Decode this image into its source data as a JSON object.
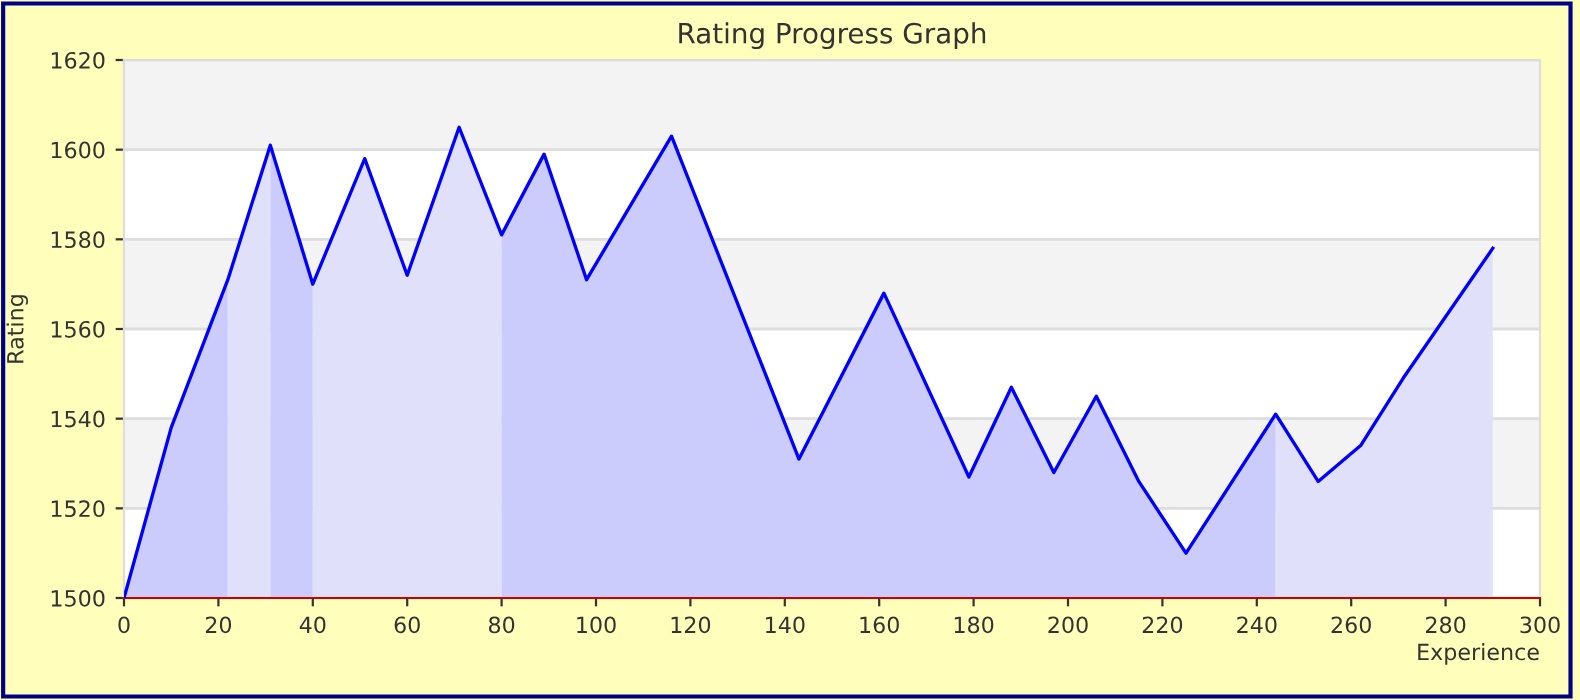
{
  "chart_data": {
    "type": "area",
    "title": "Rating Progress Graph",
    "xlabel": "Experience",
    "ylabel": "Rating",
    "xlim": [
      0,
      300
    ],
    "xticks": [
      0,
      20,
      40,
      60,
      80,
      100,
      120,
      140,
      160,
      180,
      200,
      220,
      240,
      260,
      280,
      300
    ],
    "ylim": [
      1500,
      1620
    ],
    "yticks": [
      1500,
      1520,
      1540,
      1560,
      1580,
      1600,
      1620
    ],
    "grid": "y",
    "series": [
      {
        "type": "area",
        "color": "#ccccfc",
        "x": [
          0,
          10,
          22
        ],
        "values": [
          1500,
          1538,
          1571
        ]
      },
      {
        "type": "area",
        "color": "#e0e0fa",
        "x": [
          22,
          31
        ],
        "values": [
          1571,
          1601
        ]
      },
      {
        "type": "area",
        "color": "#ccccfc",
        "x": [
          31,
          40
        ],
        "values": [
          1601,
          1570
        ]
      },
      {
        "type": "area",
        "color": "#e0e0fa",
        "x": [
          40,
          51,
          60,
          71,
          80
        ],
        "values": [
          1570,
          1598,
          1572,
          1605,
          1581
        ]
      },
      {
        "type": "area",
        "color": "#ccccfc",
        "x": [
          80,
          89,
          98,
          107,
          116,
          143,
          161,
          179,
          188,
          197,
          206,
          215,
          225,
          244
        ],
        "values": [
          1581,
          1599,
          1571,
          1587,
          1603,
          1531,
          1568,
          1527,
          1547,
          1528,
          1545,
          1526,
          1510,
          1541
        ]
      },
      {
        "type": "area",
        "color": "#e0e0fa",
        "x": [
          244,
          253,
          262,
          271,
          290
        ],
        "values": [
          1541,
          1526,
          1534,
          1549,
          1578
        ]
      },
      {
        "type": "line",
        "color": "#0000ff",
        "x": [
          0,
          10,
          22,
          31,
          40,
          51,
          60,
          71,
          80,
          89,
          98,
          107,
          116,
          143,
          161,
          179,
          188,
          197,
          206,
          215,
          225,
          244,
          253,
          262,
          271,
          290
        ],
        "values": [
          1500,
          1538,
          1571,
          1601,
          1570,
          1598,
          1572,
          1605,
          1581,
          1599,
          1571,
          1587,
          1603,
          1531,
          1568,
          1527,
          1547,
          1528,
          1545,
          1526,
          1510,
          1541,
          1526,
          1534,
          1549,
          1578
        ]
      }
    ]
  }
}
